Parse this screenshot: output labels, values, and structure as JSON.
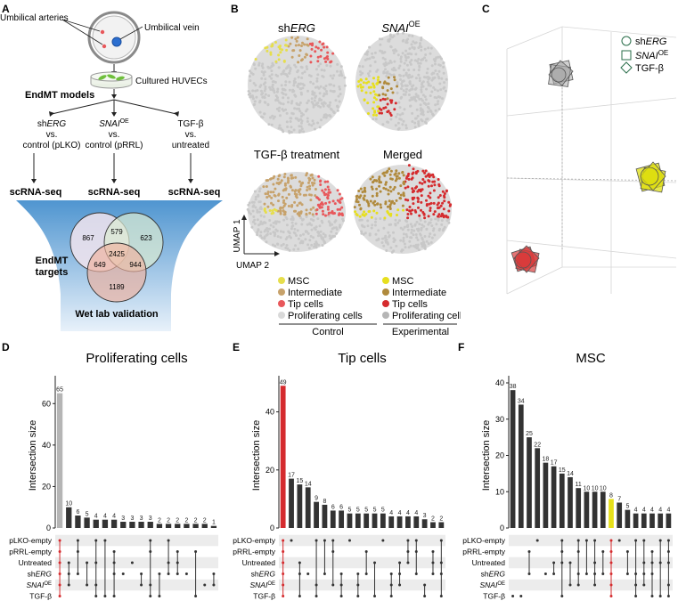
{
  "panel_labels": {
    "A": "A",
    "B": "B",
    "C": "C",
    "D": "D",
    "E": "E",
    "F": "F"
  },
  "panelA": {
    "umbilical_arteries": "Umbilical arteries",
    "umbilical_vein": "Umbilical vein",
    "cultured": "Cultured HUVECs",
    "endmt_models": "EndMT models",
    "models": [
      {
        "line1_a": "sh",
        "line1_b": "ERG",
        "line2": "vs.",
        "line3": "control (pLKO)"
      },
      {
        "line1_a": "SNAI",
        "line1_sup": "OE",
        "line2": "vs.",
        "line3": "control (pRRL)"
      },
      {
        "line1_a": "TGF-β",
        "line2": "vs.",
        "line3": "untreated"
      }
    ],
    "scrna": "scRNA-seq",
    "endmt_targets_1": "EndMT",
    "endmt_targets_2": "targets",
    "venn": {
      "a_only": "867",
      "ab": "579",
      "b_only": "623",
      "abc": "2425",
      "ac": "649",
      "bc": "944",
      "c_only": "1189"
    },
    "wet_lab": "Wet lab validation"
  },
  "panelB": {
    "titles": {
      "sherg_a": "sh",
      "sherg_b": "ERG",
      "snai_a": "SNAI",
      "snai_sup": "OE",
      "tgf": "TGF-β treatment",
      "merged": "Merged"
    },
    "umap1": "UMAP 1",
    "umap2": "UMAP 2",
    "legend": [
      "MSC",
      "Intermediate",
      "Tip cells",
      "Proliferating cells"
    ],
    "control": "Control",
    "experimental": "Experimental",
    "colors_control": [
      "#e6de4c",
      "#c7a26b",
      "#e8585b",
      "#d9d9d9"
    ],
    "colors_experimental": [
      "#e7df1e",
      "#b08a3c",
      "#d52b2e",
      "#b5b5b5"
    ]
  },
  "panelC": {
    "legend": [
      {
        "shape": "circle",
        "a": "sh",
        "b": "ERG"
      },
      {
        "shape": "square",
        "a": "SNAI",
        "sup": "OE"
      },
      {
        "shape": "diamond",
        "a": "TGF-β"
      }
    ]
  },
  "upset_rows": {
    "r1": "pLKO-empty",
    "r2": "pRRL-empty",
    "r3": "Untreated",
    "r4a": "sh",
    "r4b": "ERG",
    "r5a": "SNAI",
    "r5sup": "OE",
    "r6": "TGF-β"
  },
  "chart_data": [
    {
      "type": "bar",
      "title": "Proliferating cells",
      "ylabel": "Intersection size",
      "ylim": [
        0,
        70
      ],
      "yticks": [
        0,
        20,
        40,
        60
      ],
      "values": [
        65,
        10,
        6,
        5,
        4,
        4,
        4,
        3,
        3,
        3,
        3,
        2,
        2,
        2,
        2,
        2,
        2,
        1
      ],
      "highlight_index": 0,
      "highlight_color": "#b5b5b5"
    },
    {
      "type": "bar",
      "title": "Tip cells",
      "ylabel": "Intersection size",
      "ylim": [
        0,
        50
      ],
      "yticks": [
        0,
        20,
        40
      ],
      "values": [
        49,
        17,
        15,
        14,
        9,
        8,
        6,
        6,
        5,
        5,
        5,
        5,
        5,
        4,
        4,
        4,
        4,
        3,
        2,
        2
      ],
      "highlight_index": 0,
      "highlight_color": "#d52b2e"
    },
    {
      "type": "bar",
      "title": "MSC",
      "ylabel": "Intersection size",
      "ylim": [
        0,
        40
      ],
      "yticks": [
        0,
        10,
        20,
        30,
        40
      ],
      "values": [
        38,
        34,
        25,
        22,
        18,
        17,
        15,
        14,
        11,
        10,
        10,
        10,
        8,
        7,
        5,
        4,
        4,
        4,
        4,
        4
      ],
      "highlight_index": 12,
      "highlight_color": "#e6e01a"
    }
  ]
}
